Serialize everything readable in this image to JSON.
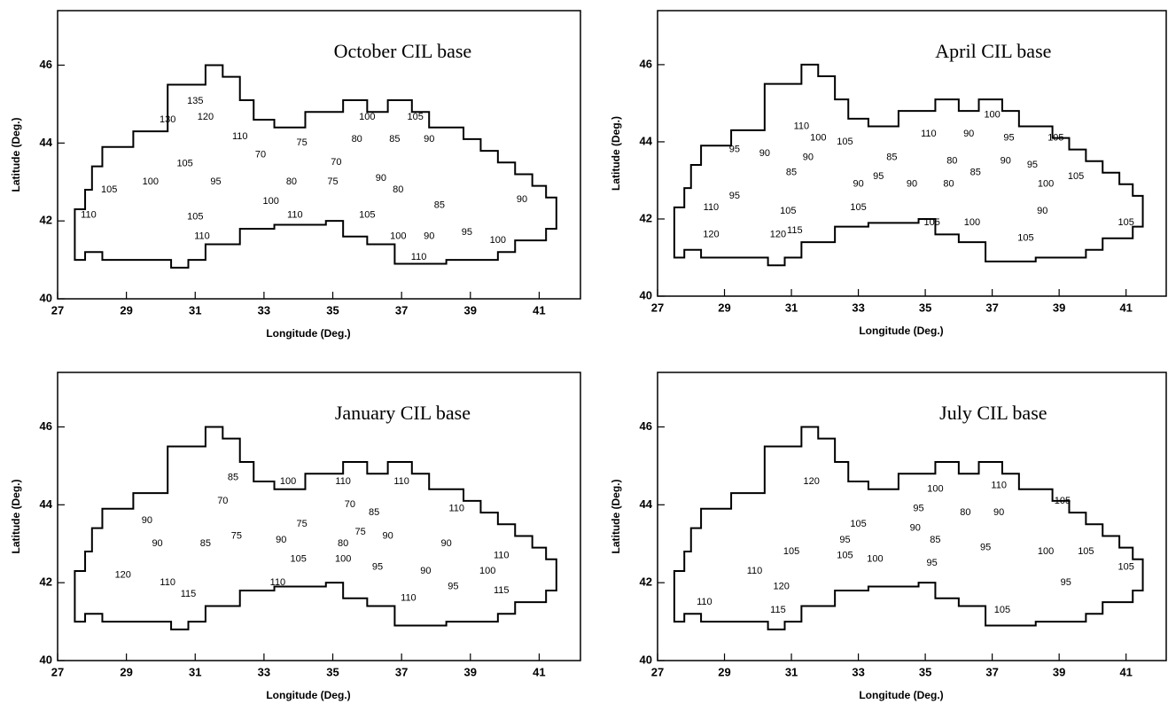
{
  "chart_data": [
    {
      "type": "contour",
      "title": "October CIL base",
      "x_label": "Longitude (Deg.)",
      "y_label": "Latitude (Deg.)",
      "xlim": [
        27,
        42.2
      ],
      "ylim": [
        40,
        47.4
      ],
      "xticks": [
        27,
        29,
        31,
        33,
        35,
        37,
        39,
        41
      ],
      "yticks": [
        40,
        42,
        44,
        46
      ],
      "contour_labels": [
        {
          "x": 31.0,
          "y": 45.07,
          "value": 135
        },
        {
          "x": 30.2,
          "y": 44.6,
          "value": 130
        },
        {
          "x": 31.3,
          "y": 44.66,
          "value": 120
        },
        {
          "x": 32.3,
          "y": 44.16,
          "value": 110
        },
        {
          "x": 30.7,
          "y": 43.47,
          "value": 105
        },
        {
          "x": 36.0,
          "y": 44.66,
          "value": 100
        },
        {
          "x": 37.4,
          "y": 44.66,
          "value": 105
        },
        {
          "x": 34.1,
          "y": 44.0,
          "value": 75
        },
        {
          "x": 35.7,
          "y": 44.1,
          "value": 80
        },
        {
          "x": 36.8,
          "y": 44.1,
          "value": 85
        },
        {
          "x": 37.8,
          "y": 44.1,
          "value": 90
        },
        {
          "x": 32.9,
          "y": 43.7,
          "value": 70
        },
        {
          "x": 31.6,
          "y": 43.0,
          "value": 95
        },
        {
          "x": 29.7,
          "y": 43.0,
          "value": 100
        },
        {
          "x": 28.5,
          "y": 42.8,
          "value": 105
        },
        {
          "x": 27.9,
          "y": 42.15,
          "value": 110
        },
        {
          "x": 33.8,
          "y": 43.0,
          "value": 80
        },
        {
          "x": 35.0,
          "y": 43.0,
          "value": 75
        },
        {
          "x": 35.1,
          "y": 43.5,
          "value": 70
        },
        {
          "x": 36.4,
          "y": 43.1,
          "value": 90
        },
        {
          "x": 36.9,
          "y": 42.8,
          "value": 80
        },
        {
          "x": 38.1,
          "y": 42.4,
          "value": 85
        },
        {
          "x": 40.5,
          "y": 42.55,
          "value": 90
        },
        {
          "x": 33.2,
          "y": 42.5,
          "value": 100
        },
        {
          "x": 33.9,
          "y": 42.15,
          "value": 110
        },
        {
          "x": 36.0,
          "y": 42.15,
          "value": 105
        },
        {
          "x": 36.9,
          "y": 41.6,
          "value": 100
        },
        {
          "x": 37.8,
          "y": 41.6,
          "value": 90
        },
        {
          "x": 38.9,
          "y": 41.7,
          "value": 95
        },
        {
          "x": 39.8,
          "y": 41.5,
          "value": 100
        },
        {
          "x": 37.5,
          "y": 41.07,
          "value": 110
        },
        {
          "x": 31.2,
          "y": 41.6,
          "value": 110
        },
        {
          "x": 31.0,
          "y": 42.1,
          "value": 105
        }
      ]
    },
    {
      "type": "contour",
      "title": "April CIL base",
      "x_label": "Longitude (Deg.)",
      "y_label": "Latitude (Deg.)",
      "xlim": [
        27,
        42.2
      ],
      "ylim": [
        40,
        47.4
      ],
      "xticks": [
        27,
        29,
        31,
        33,
        35,
        37,
        39,
        41
      ],
      "yticks": [
        40,
        42,
        44,
        46
      ],
      "contour_labels": [
        {
          "x": 37.0,
          "y": 44.7,
          "value": 100
        },
        {
          "x": 31.3,
          "y": 44.4,
          "value": 110
        },
        {
          "x": 31.8,
          "y": 44.1,
          "value": 100
        },
        {
          "x": 32.6,
          "y": 44.0,
          "value": 105
        },
        {
          "x": 35.1,
          "y": 44.2,
          "value": 110
        },
        {
          "x": 36.3,
          "y": 44.2,
          "value": 90
        },
        {
          "x": 37.5,
          "y": 44.1,
          "value": 95
        },
        {
          "x": 38.9,
          "y": 44.1,
          "value": 105
        },
        {
          "x": 29.3,
          "y": 43.8,
          "value": 95
        },
        {
          "x": 30.2,
          "y": 43.7,
          "value": 90
        },
        {
          "x": 31.5,
          "y": 43.6,
          "value": 90
        },
        {
          "x": 31.0,
          "y": 43.2,
          "value": 85
        },
        {
          "x": 34.0,
          "y": 43.6,
          "value": 85
        },
        {
          "x": 35.8,
          "y": 43.5,
          "value": 80
        },
        {
          "x": 36.5,
          "y": 43.2,
          "value": 85
        },
        {
          "x": 37.4,
          "y": 43.5,
          "value": 90
        },
        {
          "x": 38.2,
          "y": 43.4,
          "value": 95
        },
        {
          "x": 38.6,
          "y": 42.9,
          "value": 100
        },
        {
          "x": 39.5,
          "y": 43.1,
          "value": 105
        },
        {
          "x": 33.0,
          "y": 42.9,
          "value": 90
        },
        {
          "x": 33.6,
          "y": 43.1,
          "value": 95
        },
        {
          "x": 34.6,
          "y": 42.9,
          "value": 90
        },
        {
          "x": 35.7,
          "y": 42.9,
          "value": 80
        },
        {
          "x": 38.5,
          "y": 42.2,
          "value": 90
        },
        {
          "x": 29.3,
          "y": 42.6,
          "value": 95
        },
        {
          "x": 28.6,
          "y": 42.3,
          "value": 110
        },
        {
          "x": 30.9,
          "y": 42.2,
          "value": 105
        },
        {
          "x": 33.0,
          "y": 42.3,
          "value": 105
        },
        {
          "x": 35.2,
          "y": 41.9,
          "value": 105
        },
        {
          "x": 36.4,
          "y": 41.9,
          "value": 100
        },
        {
          "x": 31.1,
          "y": 41.7,
          "value": 115
        },
        {
          "x": 30.6,
          "y": 41.6,
          "value": 120
        },
        {
          "x": 28.6,
          "y": 41.6,
          "value": 120
        },
        {
          "x": 38.0,
          "y": 41.5,
          "value": 105
        },
        {
          "x": 41.0,
          "y": 41.9,
          "value": 105
        }
      ]
    },
    {
      "type": "contour",
      "title": "January CIL base",
      "x_label": "Longitude (Deg.)",
      "y_label": "Latitude (Deg.)",
      "xlim": [
        27,
        42.2
      ],
      "ylim": [
        40,
        47.4
      ],
      "xticks": [
        27,
        29,
        31,
        33,
        35,
        37,
        39,
        41
      ],
      "yticks": [
        40,
        42,
        44,
        46
      ],
      "contour_labels": [
        {
          "x": 32.1,
          "y": 44.7,
          "value": 85
        },
        {
          "x": 33.7,
          "y": 44.6,
          "value": 100
        },
        {
          "x": 35.3,
          "y": 44.6,
          "value": 110
        },
        {
          "x": 37.0,
          "y": 44.6,
          "value": 110
        },
        {
          "x": 31.8,
          "y": 44.1,
          "value": 70
        },
        {
          "x": 35.5,
          "y": 44.0,
          "value": 70
        },
        {
          "x": 36.2,
          "y": 43.8,
          "value": 85
        },
        {
          "x": 38.6,
          "y": 43.9,
          "value": 110
        },
        {
          "x": 29.6,
          "y": 43.6,
          "value": 90
        },
        {
          "x": 32.2,
          "y": 43.2,
          "value": 75
        },
        {
          "x": 34.1,
          "y": 43.5,
          "value": 75
        },
        {
          "x": 29.9,
          "y": 43.0,
          "value": 90
        },
        {
          "x": 31.3,
          "y": 43.0,
          "value": 85
        },
        {
          "x": 33.5,
          "y": 43.1,
          "value": 90
        },
        {
          "x": 35.3,
          "y": 43.0,
          "value": 80
        },
        {
          "x": 35.8,
          "y": 43.3,
          "value": 75
        },
        {
          "x": 36.6,
          "y": 43.2,
          "value": 90
        },
        {
          "x": 39.9,
          "y": 42.7,
          "value": 110
        },
        {
          "x": 38.3,
          "y": 43.0,
          "value": 90
        },
        {
          "x": 39.5,
          "y": 42.3,
          "value": 100
        },
        {
          "x": 37.7,
          "y": 42.3,
          "value": 90
        },
        {
          "x": 34.0,
          "y": 42.6,
          "value": 105
        },
        {
          "x": 35.3,
          "y": 42.6,
          "value": 100
        },
        {
          "x": 36.3,
          "y": 42.4,
          "value": 95
        },
        {
          "x": 38.5,
          "y": 41.9,
          "value": 95
        },
        {
          "x": 30.2,
          "y": 42.0,
          "value": 110
        },
        {
          "x": 33.4,
          "y": 42.0,
          "value": 110
        },
        {
          "x": 30.8,
          "y": 41.7,
          "value": 115
        },
        {
          "x": 39.9,
          "y": 41.8,
          "value": 115
        },
        {
          "x": 28.9,
          "y": 42.2,
          "value": 120
        },
        {
          "x": 37.2,
          "y": 41.6,
          "value": 110
        }
      ]
    },
    {
      "type": "contour",
      "title": "July CIL base",
      "x_label": "Longitude (Deg.)",
      "y_label": "Latitude (Deg.)",
      "xlim": [
        27,
        42.2
      ],
      "ylim": [
        40,
        47.4
      ],
      "xticks": [
        27,
        29,
        31,
        33,
        35,
        37,
        39,
        41
      ],
      "yticks": [
        40,
        42,
        44,
        46
      ],
      "contour_labels": [
        {
          "x": 31.6,
          "y": 44.6,
          "value": 120
        },
        {
          "x": 35.3,
          "y": 44.4,
          "value": 100
        },
        {
          "x": 37.2,
          "y": 44.5,
          "value": 110
        },
        {
          "x": 39.1,
          "y": 44.1,
          "value": 105
        },
        {
          "x": 34.8,
          "y": 43.9,
          "value": 95
        },
        {
          "x": 36.2,
          "y": 43.8,
          "value": 80
        },
        {
          "x": 37.2,
          "y": 43.8,
          "value": 90
        },
        {
          "x": 33.0,
          "y": 43.5,
          "value": 105
        },
        {
          "x": 34.7,
          "y": 43.4,
          "value": 90
        },
        {
          "x": 35.3,
          "y": 43.1,
          "value": 85
        },
        {
          "x": 32.6,
          "y": 43.1,
          "value": 95
        },
        {
          "x": 36.8,
          "y": 42.9,
          "value": 95
        },
        {
          "x": 31.0,
          "y": 42.8,
          "value": 105
        },
        {
          "x": 38.6,
          "y": 42.8,
          "value": 100
        },
        {
          "x": 39.8,
          "y": 42.8,
          "value": 105
        },
        {
          "x": 41.0,
          "y": 42.4,
          "value": 105
        },
        {
          "x": 29.9,
          "y": 42.3,
          "value": 110
        },
        {
          "x": 32.6,
          "y": 42.7,
          "value": 105
        },
        {
          "x": 33.5,
          "y": 42.6,
          "value": 100
        },
        {
          "x": 35.2,
          "y": 42.5,
          "value": 95
        },
        {
          "x": 39.2,
          "y": 42.0,
          "value": 95
        },
        {
          "x": 30.7,
          "y": 41.9,
          "value": 120
        },
        {
          "x": 28.4,
          "y": 41.5,
          "value": 110
        },
        {
          "x": 30.6,
          "y": 41.3,
          "value": 115
        },
        {
          "x": 37.3,
          "y": 41.3,
          "value": 105
        }
      ]
    }
  ]
}
